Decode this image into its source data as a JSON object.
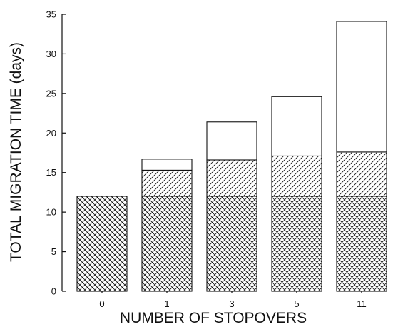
{
  "chart_data": {
    "type": "bar",
    "stacked": true,
    "title": "",
    "xlabel": "NUMBER OF STOPOVERS",
    "ylabel": "TOTAL MIGRATION TIME (days)",
    "categories": [
      "0",
      "1",
      "3",
      "5",
      "11"
    ],
    "ylim": [
      0,
      35
    ],
    "yticks": [
      "0",
      "5",
      "10",
      "15",
      "20",
      "25",
      "30",
      "35"
    ],
    "grid": false,
    "legend": "none",
    "series": [
      {
        "pattern": "crosshatch",
        "values": [
          12,
          12,
          12,
          12,
          12
        ]
      },
      {
        "pattern": "diagonal-hatch",
        "values": [
          0,
          3.3,
          4.6,
          5.1,
          5.6
        ]
      },
      {
        "pattern": "empty",
        "values": [
          0,
          1.4,
          4.8,
          7.5,
          16.5
        ]
      }
    ],
    "colors": {
      "stroke": "#111111",
      "background": "#ffffff"
    }
  }
}
